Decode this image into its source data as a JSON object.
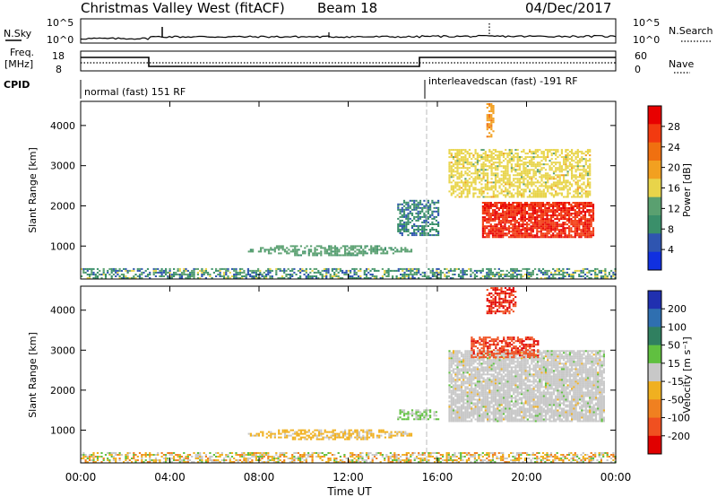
{
  "header": {
    "title": "Christmas Valley West (fitACF)",
    "beam": "Beam 18",
    "date": "04/Dec/2017"
  },
  "summary_panels": {
    "nsky_label": "N.Sky",
    "nsky_ticks": [
      "10^5",
      "10^0"
    ],
    "nsearch_label": "N.Search",
    "nsearch_ticks": [
      "10^5",
      "10^0"
    ],
    "freq_label_1": "Freq.",
    "freq_label_2": "[MHz]",
    "freq_ticks": [
      "18",
      "8"
    ],
    "nave_label": "Nave",
    "nave_ticks": [
      "60",
      "0"
    ],
    "cpid_label": "CPID",
    "cpid_segments": [
      "normal (fast) 151 RF",
      "interleavedscan (fast) -191 RF"
    ]
  },
  "axes": {
    "xlabel": "Time UT",
    "x_ticks": [
      "00:00",
      "04:00",
      "08:00",
      "12:00",
      "16:00",
      "20:00",
      "00:00"
    ],
    "ylabel": "Slant Range [km]",
    "y_ticks": [
      "1000",
      "2000",
      "3000",
      "4000"
    ],
    "xlim_hours": [
      0,
      24
    ],
    "ylim_km": [
      180,
      4600
    ]
  },
  "colors": {
    "power": [
      "#1030e0",
      "#2f55b0",
      "#3a8f6a",
      "#5aa070",
      "#e8d44a",
      "#f2a020",
      "#f07010",
      "#f23a10",
      "#e80000"
    ],
    "velocity": [
      "#2030b0",
      "#2f6fb0",
      "#308060",
      "#60c040",
      "#c8c8c8",
      "#f0b020",
      "#f08020",
      "#f05020",
      "#e00000"
    ]
  },
  "chart_data": [
    {
      "type": "heatmap",
      "name": "power",
      "colorbar_label": "Power [dB]",
      "colorbar_ticks": [
        "28",
        "24",
        "20",
        "16",
        "12",
        "8",
        "4"
      ],
      "colorbar_range": [
        0,
        32
      ],
      "xlabel": "Time UT",
      "ylabel": "Slant Range [km]",
      "xlim": [
        0,
        24
      ],
      "ylim": [
        180,
        4600
      ],
      "mode_change_time_hours": 15.2,
      "regions": [
        {
          "t": [
            0,
            24
          ],
          "r": [
            180,
            420
          ],
          "value": 10,
          "kind": "ground-clutter"
        },
        {
          "t": [
            7.5,
            14.8
          ],
          "r": [
            750,
            1000
          ],
          "value": 12,
          "kind": "arc"
        },
        {
          "t": [
            18.0,
            23.0
          ],
          "r": [
            1200,
            2100
          ],
          "value": 28,
          "kind": "main"
        },
        {
          "t": [
            16.5,
            22.8
          ],
          "r": [
            2200,
            3400
          ],
          "value": 16,
          "kind": "upper"
        },
        {
          "t": [
            14.2,
            16.0
          ],
          "r": [
            1250,
            2150
          ],
          "value": 8,
          "kind": "patch"
        },
        {
          "t": [
            18.2,
            18.5
          ],
          "r": [
            3700,
            4550
          ],
          "value": 20,
          "kind": "spike"
        }
      ]
    },
    {
      "type": "heatmap",
      "name": "velocity",
      "colorbar_label": "Velocity [m s⁻¹]",
      "colorbar_ticks": [
        "200",
        "100",
        "50",
        "15",
        "-15",
        "-50",
        "-100",
        "-200"
      ],
      "colorbar_range": [
        -250,
        250
      ],
      "xlabel": "Time UT",
      "ylabel": "Slant Range [km]",
      "xlim": [
        0,
        24
      ],
      "ylim": [
        180,
        4600
      ],
      "mode_change_time_hours": 15.2,
      "regions": [
        {
          "t": [
            0,
            24
          ],
          "r": [
            180,
            420
          ],
          "value": -30,
          "kind": "ground-clutter"
        },
        {
          "t": [
            7.5,
            14.8
          ],
          "r": [
            750,
            1000
          ],
          "value": -40,
          "kind": "arc"
        },
        {
          "t": [
            16.5,
            23.5
          ],
          "r": [
            1200,
            3000
          ],
          "value": 0,
          "kind": "main"
        },
        {
          "t": [
            14.2,
            16.0
          ],
          "r": [
            1250,
            1500
          ],
          "value": 40,
          "kind": "patch"
        },
        {
          "t": [
            17.5,
            20.5
          ],
          "r": [
            2800,
            3300
          ],
          "value": -180,
          "kind": "upper"
        },
        {
          "t": [
            18.2,
            19.5
          ],
          "r": [
            3900,
            4550
          ],
          "value": -200,
          "kind": "spike"
        }
      ]
    }
  ]
}
